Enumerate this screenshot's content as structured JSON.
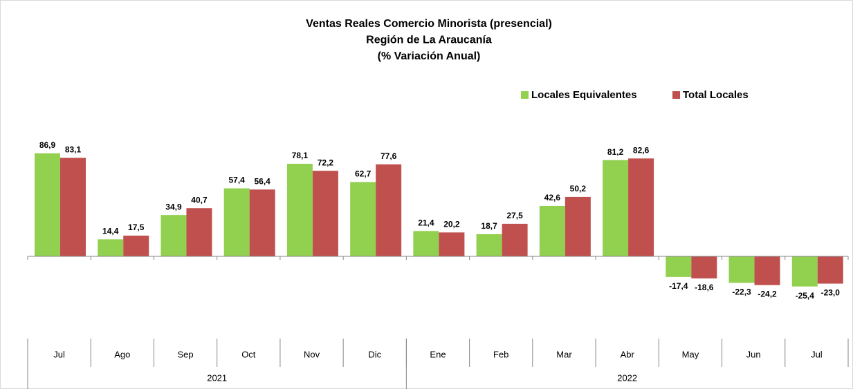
{
  "chart_data": {
    "type": "bar",
    "title": [
      "Ventas Reales Comercio Minorista (presencial)",
      "Región de La Araucanía",
      "(% Variación Anual)"
    ],
    "categories": [
      "Jul",
      "Ago",
      "Sep",
      "Oct",
      "Nov",
      "Dic",
      "Ene",
      "Feb",
      "Mar",
      "Abr",
      "May",
      "Jun",
      "Jul"
    ],
    "x_groups": [
      {
        "label": "2021",
        "count": 6
      },
      {
        "label": "2022",
        "count": 7
      }
    ],
    "series": [
      {
        "name": "Locales Equivalentes",
        "color": "#92d050",
        "values": [
          86.9,
          14.4,
          34.9,
          57.4,
          78.1,
          62.7,
          21.4,
          18.7,
          42.6,
          81.2,
          -17.4,
          -22.3,
          -25.4
        ],
        "value_labels": [
          "86,9",
          "14,4",
          "34,9",
          "57,4",
          "78,1",
          "62,7",
          "21,4",
          "18,7",
          "42,6",
          "81,2",
          "-17,4",
          "-22,3",
          "-25,4"
        ]
      },
      {
        "name": "Total Locales",
        "color": "#c0504d",
        "values": [
          83.1,
          17.5,
          40.7,
          56.4,
          72.2,
          77.6,
          20.2,
          27.5,
          50.2,
          82.6,
          -18.6,
          -24.2,
          -23.0
        ],
        "value_labels": [
          "83,1",
          "17,5",
          "40,7",
          "56,4",
          "72,2",
          "77,6",
          "20,2",
          "27,5",
          "50,2",
          "82,6",
          "-18,6",
          "-24,2",
          "-23,0"
        ]
      }
    ],
    "ylim": [
      -60,
      130
    ],
    "legend": "top"
  }
}
